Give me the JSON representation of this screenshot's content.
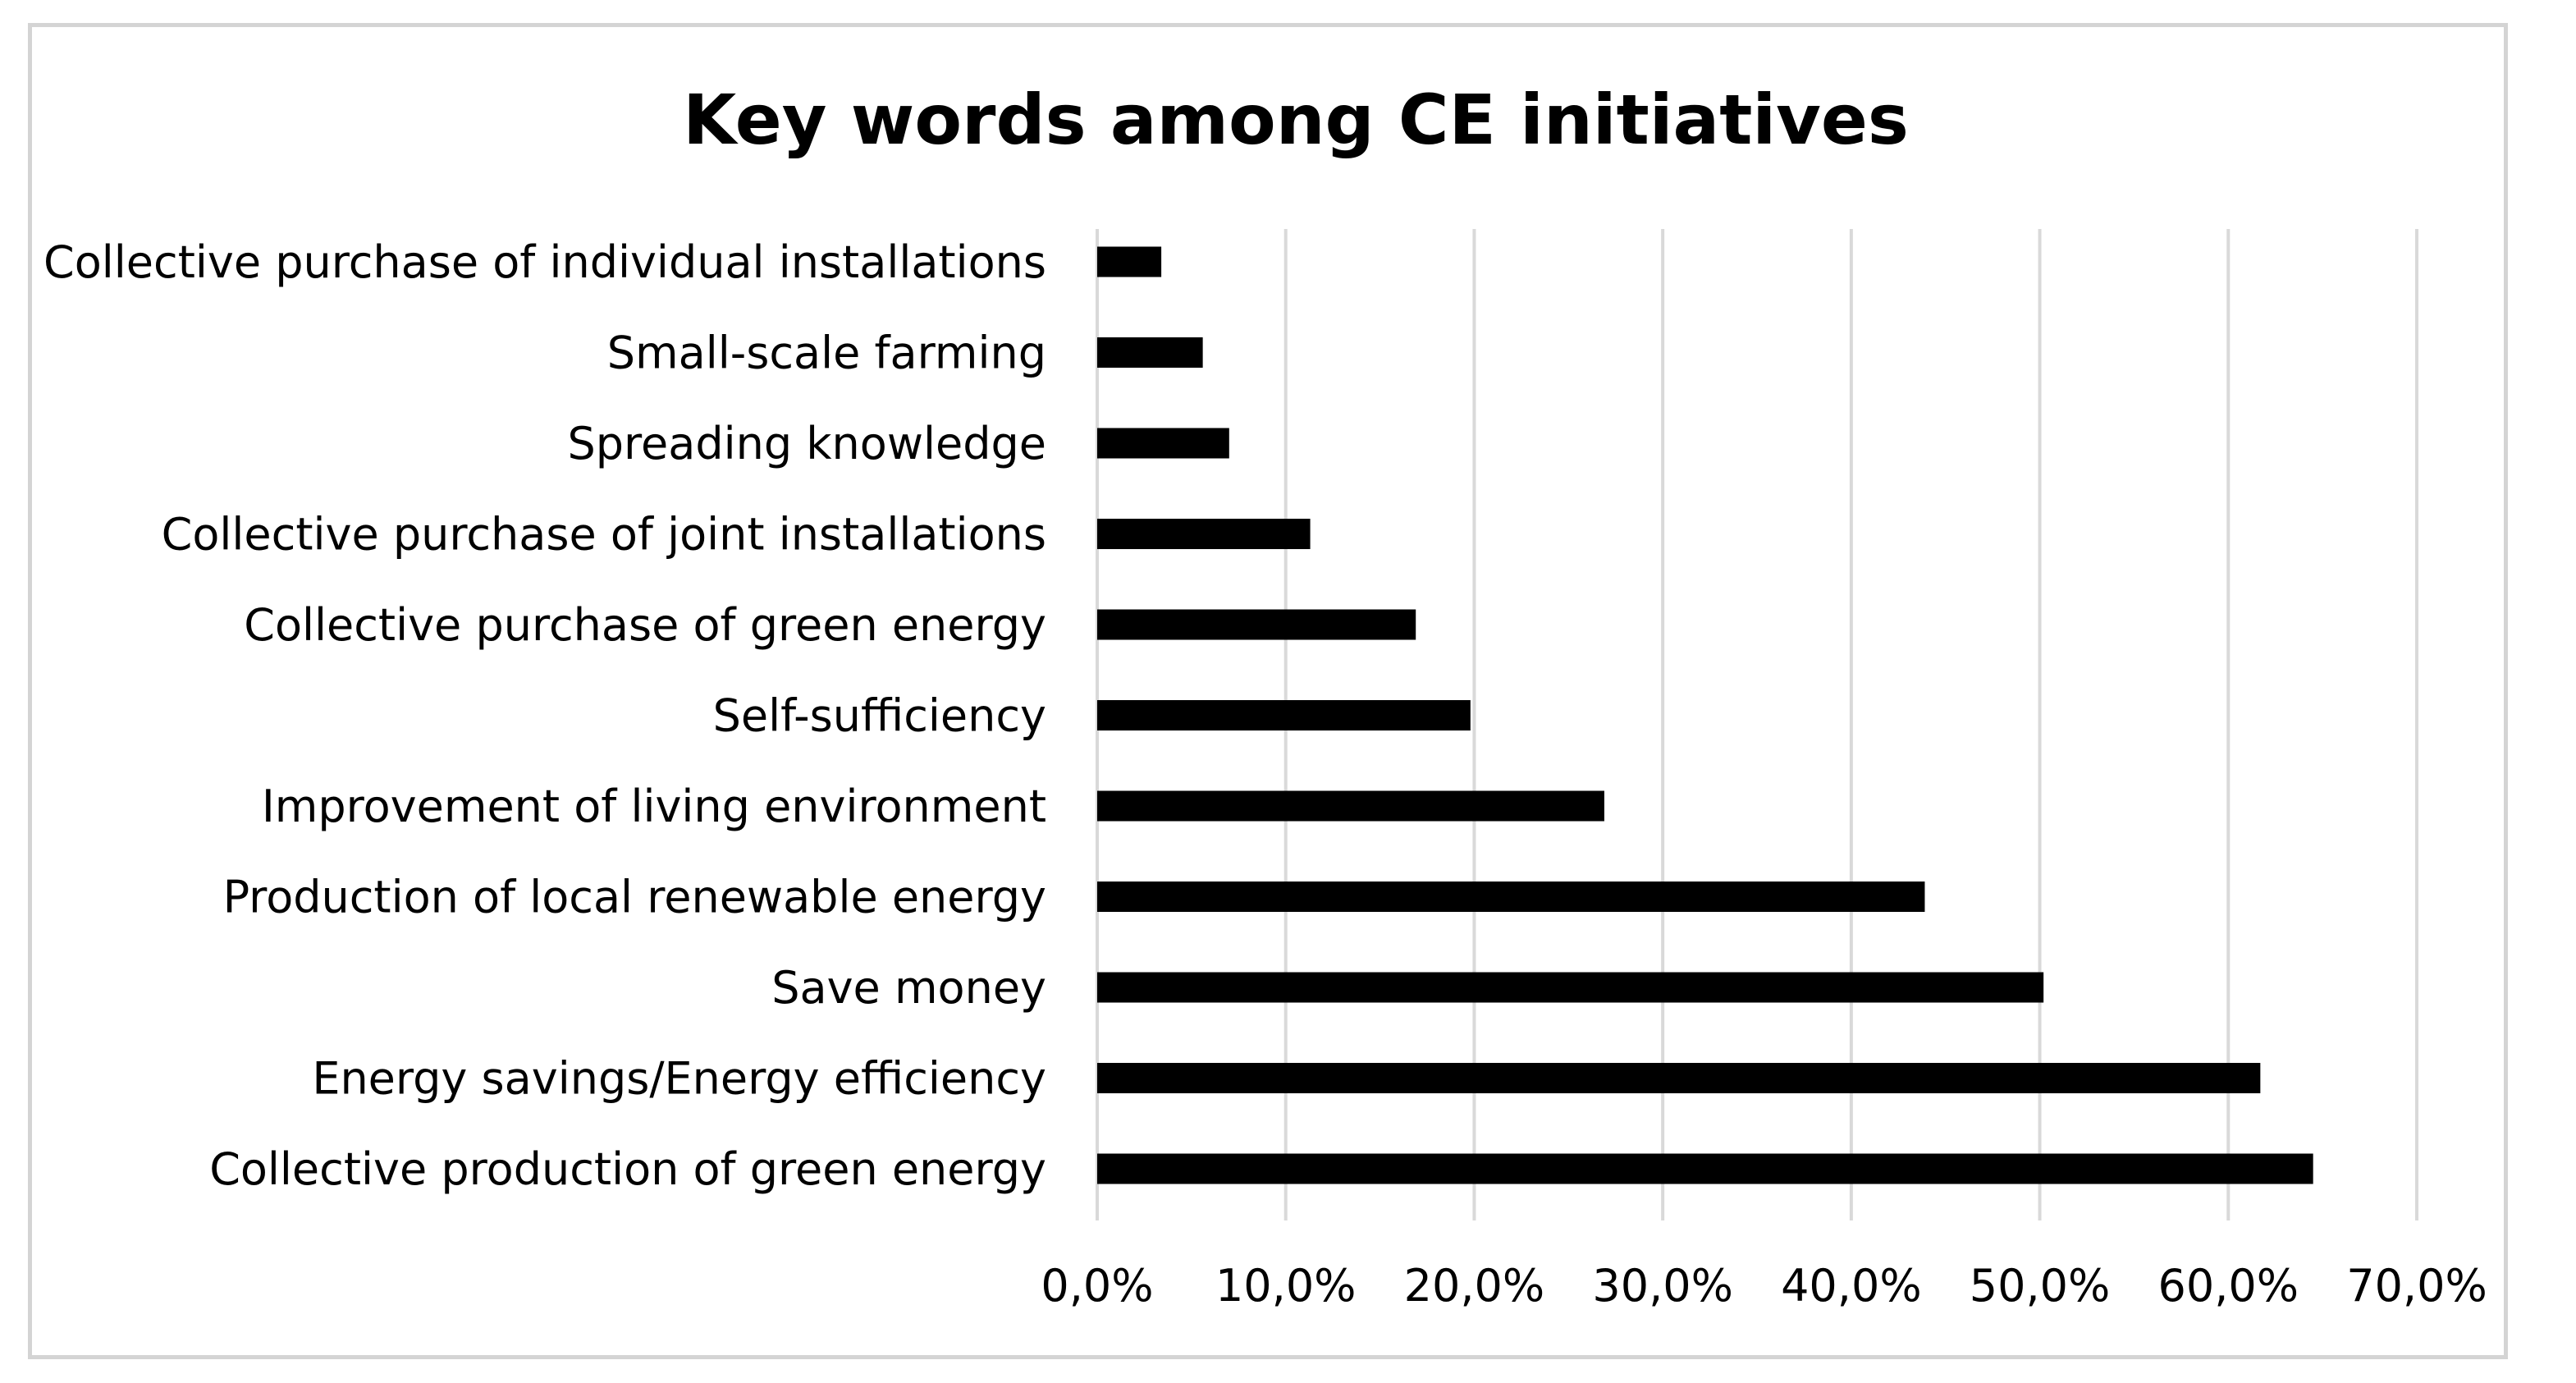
{
  "chart_data": {
    "type": "bar",
    "orientation": "horizontal",
    "title": "Key words among CE initiatives",
    "xlabel": "",
    "ylabel": "",
    "xlim": [
      0,
      70
    ],
    "x_ticks": [
      "0,0%",
      "10,0%",
      "20,0%",
      "30,0%",
      "40,0%",
      "50,0%",
      "60,0%",
      "70,0%"
    ],
    "grid": true,
    "legend": "none",
    "bar_color": "#000000",
    "categories": [
      "Collective purchase of individual installations",
      "Small-scale farming",
      "Spreading knowledge",
      "Collective purchase of joint installations",
      "Collective purchase of green energy",
      "Self-sufficiency",
      "Improvement of living environment",
      "Production of local renewable energy",
      "Save money",
      "Energy savings/Energy efficiency",
      "Collective production of green energy"
    ],
    "values": [
      3.4,
      5.6,
      7.0,
      11.3,
      16.9,
      19.8,
      26.9,
      43.9,
      50.2,
      61.7,
      64.5
    ]
  }
}
